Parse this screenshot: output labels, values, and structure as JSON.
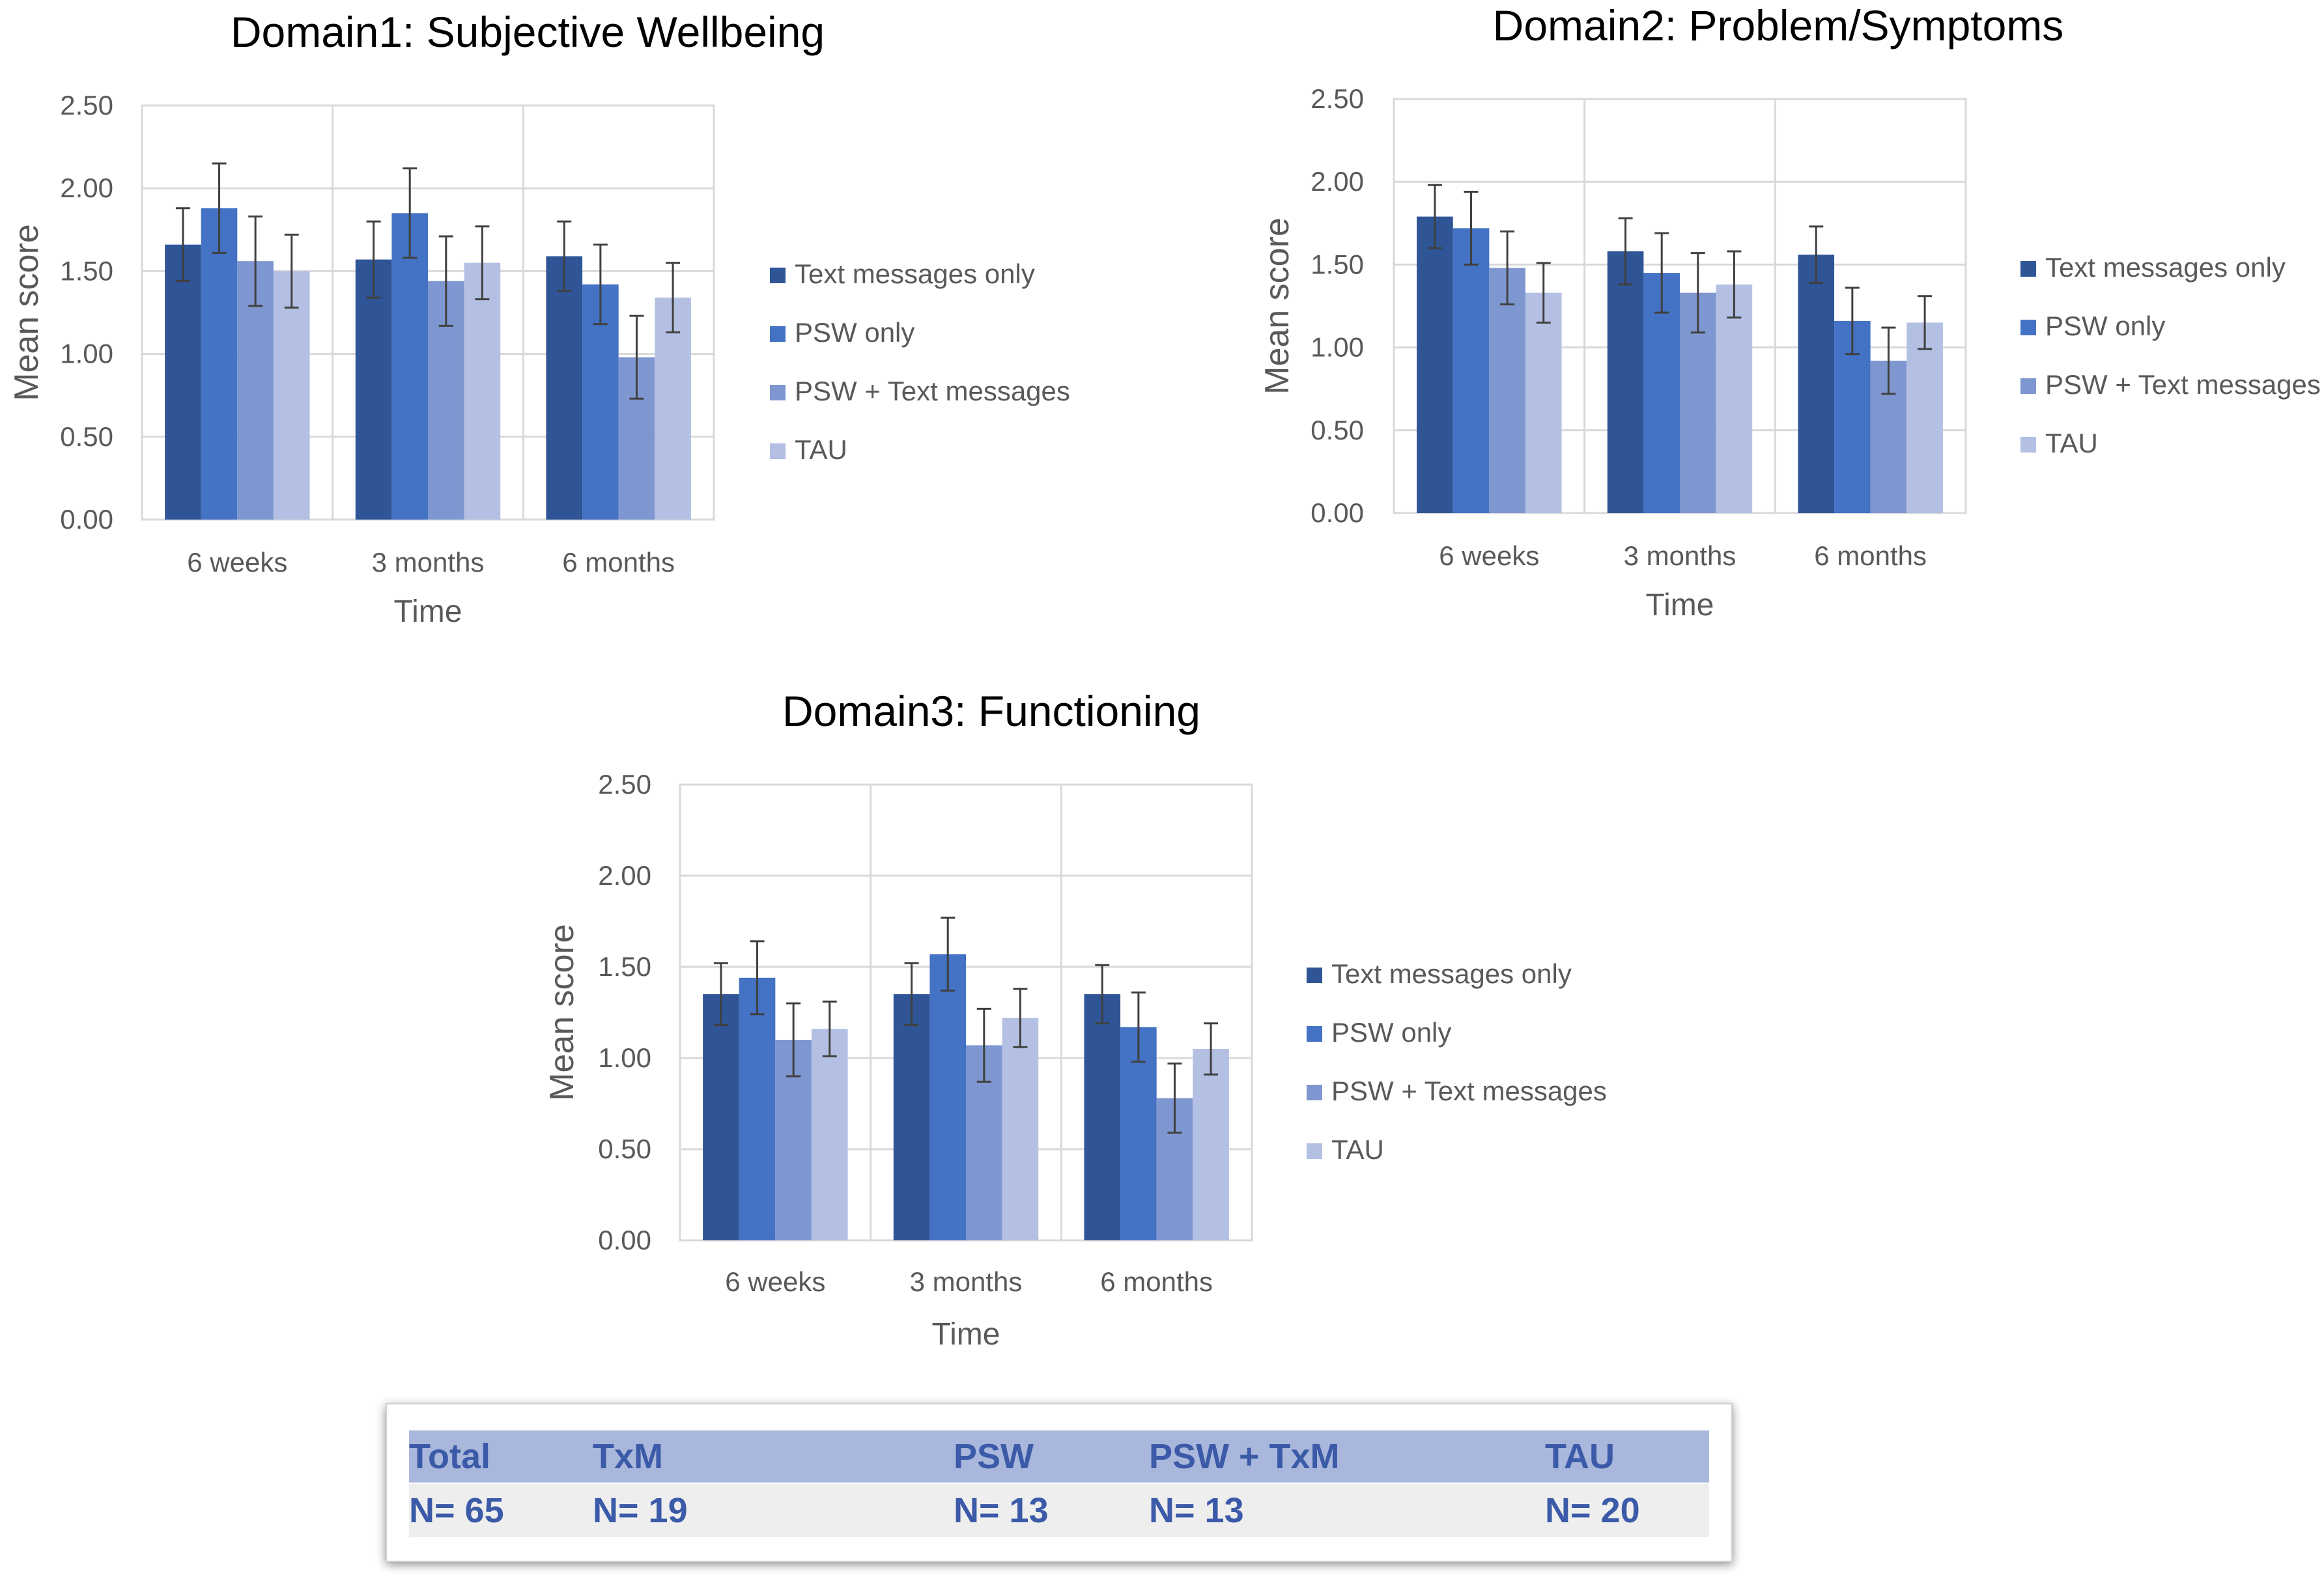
{
  "colors": {
    "text_only": "#2f5597",
    "psw_only": "#4472c4",
    "psw_text": "#7f97d0",
    "tau": "#b4c0e3",
    "grid": "#d9d9d9",
    "axis_text": "#595959",
    "title_text": "#000000",
    "error_bar": "#404040",
    "table_header_bg": "#a9b7dc",
    "table_row_bg": "#eeeeee",
    "table_text": "#3b5aa8"
  },
  "chart_data": [
    {
      "type": "bar",
      "title": "Domain1: Subjective Wellbeing",
      "xlabel": "Time",
      "ylabel": "Mean score",
      "ylim": [
        0,
        2.5
      ],
      "yticks": [
        "0.00",
        "0.50",
        "1.00",
        "1.50",
        "2.00",
        "2.50"
      ],
      "categories": [
        "6 weeks",
        "3 months",
        "6 months"
      ],
      "legend_position": "right",
      "series": [
        {
          "name": "Text messages only",
          "values": [
            1.66,
            1.57,
            1.59
          ],
          "errors": [
            0.22,
            0.23,
            0.21
          ]
        },
        {
          "name": "PSW only",
          "values": [
            1.88,
            1.85,
            1.42
          ],
          "errors": [
            0.27,
            0.27,
            0.24
          ]
        },
        {
          "name": "PSW + Text messages",
          "values": [
            1.56,
            1.44,
            0.98
          ],
          "errors": [
            0.27,
            0.27,
            0.25
          ]
        },
        {
          "name": "TAU",
          "values": [
            1.5,
            1.55,
            1.34
          ],
          "errors": [
            0.22,
            0.22,
            0.21
          ]
        }
      ]
    },
    {
      "type": "bar",
      "title": "Domain2: Problem/Symptoms",
      "xlabel": "Time",
      "ylabel": "Mean score",
      "ylim": [
        0,
        2.5
      ],
      "yticks": [
        "0.00",
        "0.50",
        "1.00",
        "1.50",
        "2.00",
        "2.50"
      ],
      "categories": [
        "6 weeks",
        "3 months",
        "6 months"
      ],
      "legend_position": "right",
      "series": [
        {
          "name": "Text messages only",
          "values": [
            1.79,
            1.58,
            1.56
          ],
          "errors": [
            0.19,
            0.2,
            0.17
          ]
        },
        {
          "name": "PSW only",
          "values": [
            1.72,
            1.45,
            1.16
          ],
          "errors": [
            0.22,
            0.24,
            0.2
          ]
        },
        {
          "name": "PSW + Text messages",
          "values": [
            1.48,
            1.33,
            0.92
          ],
          "errors": [
            0.22,
            0.24,
            0.2
          ]
        },
        {
          "name": "TAU",
          "values": [
            1.33,
            1.38,
            1.15
          ],
          "errors": [
            0.18,
            0.2,
            0.16
          ]
        }
      ]
    },
    {
      "type": "bar",
      "title": "Domain3: Functioning",
      "xlabel": "Time",
      "ylabel": "Mean score",
      "ylim": [
        0,
        2.5
      ],
      "yticks": [
        "0.00",
        "0.50",
        "1.00",
        "1.50",
        "2.00",
        "2.50"
      ],
      "categories": [
        "6 weeks",
        "3 months",
        "6 months"
      ],
      "legend_position": "right",
      "series": [
        {
          "name": "Text messages only",
          "values": [
            1.35,
            1.35,
            1.35
          ],
          "errors": [
            0.17,
            0.17,
            0.16
          ]
        },
        {
          "name": "PSW only",
          "values": [
            1.44,
            1.57,
            1.17
          ],
          "errors": [
            0.2,
            0.2,
            0.19
          ]
        },
        {
          "name": "PSW + Text messages",
          "values": [
            1.1,
            1.07,
            0.78
          ],
          "errors": [
            0.2,
            0.2,
            0.19
          ]
        },
        {
          "name": "TAU",
          "values": [
            1.16,
            1.22,
            1.05
          ],
          "errors": [
            0.15,
            0.16,
            0.14
          ]
        }
      ]
    }
  ],
  "sample_table": {
    "headers": [
      "Total",
      "TxM",
      "PSW",
      "PSW + TxM",
      "TAU"
    ],
    "values": [
      "N= 65",
      "N= 19",
      "N= 13",
      "N= 13",
      "N= 20"
    ]
  }
}
